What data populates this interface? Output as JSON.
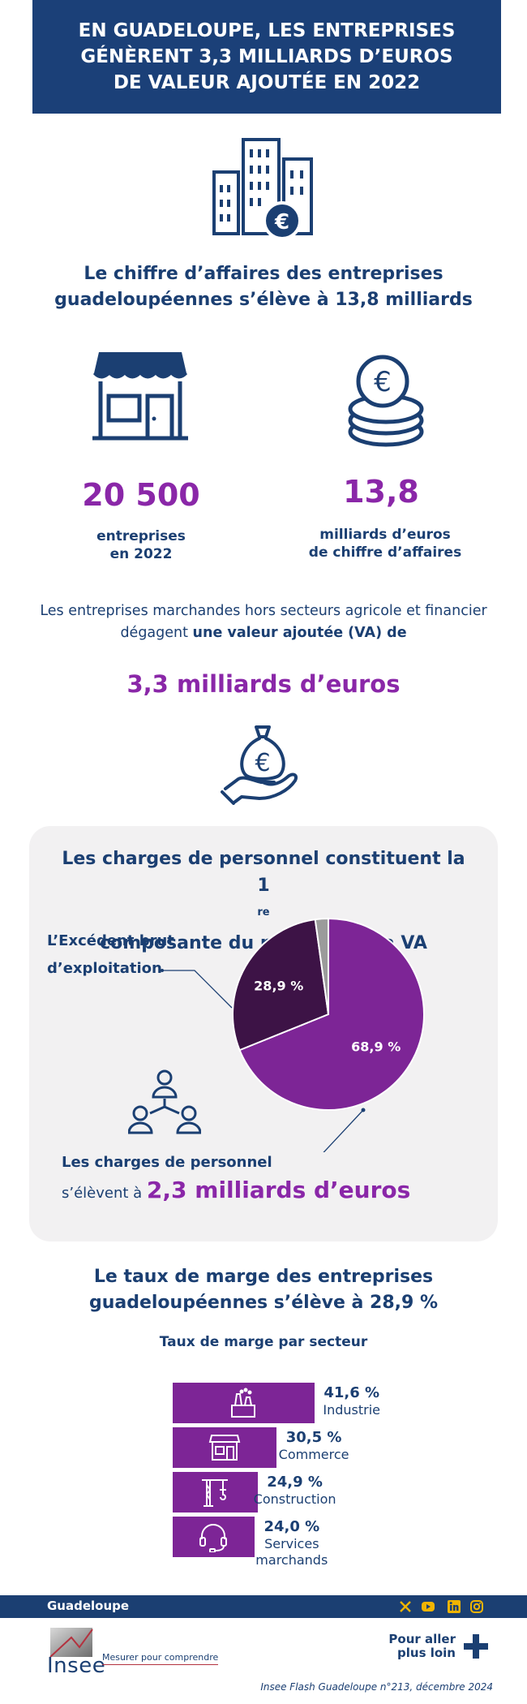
{
  "header": {
    "title_lines": [
      "EN GUADELOUPE, LES ENTREPRISES",
      "GÉNÈRENT 3,3 MILLIARDS D’EUROS",
      "DE VALEUR AJOUTÉE EN 2022"
    ]
  },
  "ca_section": {
    "title_lines": [
      "Le chiffre d’affaires des entreprises",
      "guadeloupéennes s’élève à 13,8 milliards"
    ],
    "entreprises": {
      "value": "20 500",
      "label_lines": [
        "entreprises",
        "en 2022"
      ]
    },
    "chiffre_affaires": {
      "value": "13,8",
      "label_lines": [
        "milliards d’euros",
        "de chiffre d’affaires"
      ]
    }
  },
  "va_section": {
    "intro_line1": "Les entreprises marchandes hors secteurs agricole et financier",
    "intro_line2_plain": "dégagent ",
    "intro_line2_bold": "une valeur ajoutée (VA) de",
    "value": "3,3 milliards d’euros"
  },
  "partage_section": {
    "title_line1": "Les charges de personnel constituent la",
    "title_line2_num": "1",
    "title_line2_sup": "re",
    "title_line2_rest": " composante du partage de la VA",
    "ebe_label_lines": [
      "L’Excédent brut",
      "d’exploitation"
    ],
    "charges_label_bold": "Les charges de personnel",
    "charges_label_plain": "s’élèvent à ",
    "charges_value": "2,3 milliards d’euros"
  },
  "chart_data": [
    {
      "type": "pie",
      "slices": [
        {
          "name": "Les charges de personnel",
          "value": 68.9,
          "label": "68,9 %",
          "color": "#7d2596"
        },
        {
          "name": "L’Excédent brut d’exploitation",
          "value": 28.9,
          "label": "28,9 %",
          "color": "#3d1346"
        },
        {
          "name": "",
          "value": 2.2,
          "label": "",
          "color": "#9b9b9b"
        }
      ]
    },
    {
      "type": "bar",
      "orientation": "horizontal",
      "title": "Taux de marge par secteur",
      "categories": [
        "Industrie",
        "Commerce",
        "Construction",
        "Services marchands"
      ],
      "values": [
        41.6,
        30.5,
        24.9,
        24.0
      ],
      "value_labels": [
        "41,6 %",
        "30,5 %",
        "24,9 %",
        "24,0 %"
      ],
      "category_label_lines": [
        [
          "Industrie"
        ],
        [
          "Commerce"
        ],
        [
          "Construction"
        ],
        [
          "Services",
          "marchands"
        ]
      ],
      "bar_icons": [
        "factory-icon",
        "shop-icon",
        "crane-icon",
        "headset-icon"
      ],
      "bar_color": "#7d2596"
    }
  ],
  "marge_section": {
    "title_lines": [
      "Le taux de marge des entreprises",
      "guadeloupéennes s’élève à 28,9 %"
    ]
  },
  "footer": {
    "region": "Guadeloupe",
    "social_icons": [
      "x-icon",
      "youtube-icon",
      "linkedin-icon",
      "instagram-icon"
    ],
    "logo_text": "Insee",
    "tagline": "Mesurer pour comprendre",
    "more_lines": [
      "Pour aller",
      "plus loin"
    ],
    "citation": "Insee Flash Guadeloupe n°213, décembre 2024"
  },
  "colors": {
    "navy": "#1b3f72",
    "purple": "#8a27a8",
    "dark_purple": "#3d1346",
    "panel_bg": "#f2f1f2"
  }
}
